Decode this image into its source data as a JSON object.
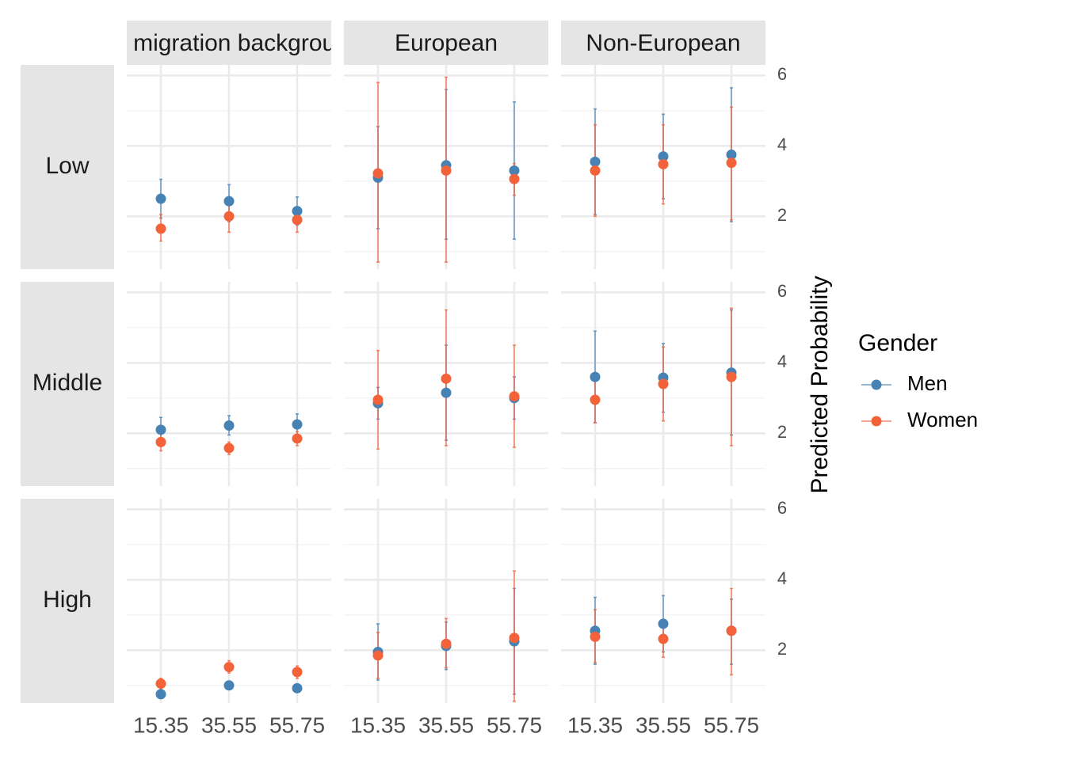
{
  "chart_data": {
    "type": "scatter",
    "x": [
      15,
      35,
      55
    ],
    "x_tick_labels": [
      "15.35",
      "35.55",
      "55.75"
    ],
    "ylabel": "Predicted Probability",
    "y_ticks": [
      2,
      4,
      6
    ],
    "ylim": [
      0.5,
      6.3
    ],
    "grid": true,
    "column_facets": [
      "No migration background",
      "European",
      "Non-European"
    ],
    "row_facets": [
      "Low",
      "Middle",
      "High"
    ],
    "legend": {
      "title": "Gender",
      "placement": "right",
      "entries": [
        {
          "name": "Men",
          "color": "#4682B4"
        },
        {
          "name": "Women",
          "color": "#F4623A"
        }
      ]
    },
    "panels": [
      {
        "row": "Low",
        "col": "No migration background",
        "series": [
          {
            "name": "Men",
            "y": [
              2.5,
              2.43,
              2.15
            ],
            "lo": [
              1.95,
              1.85,
              1.75
            ],
            "hi": [
              3.05,
              2.9,
              2.55
            ]
          },
          {
            "name": "Women",
            "y": [
              1.65,
              2.0,
              1.9
            ],
            "lo": [
              1.3,
              1.55,
              1.55
            ],
            "hi": [
              2.05,
              2.4,
              2.25
            ]
          }
        ]
      },
      {
        "row": "Low",
        "col": "European",
        "series": [
          {
            "name": "Men",
            "y": [
              3.1,
              3.45,
              3.3
            ],
            "lo": [
              1.65,
              1.35,
              1.35
            ],
            "hi": [
              4.55,
              5.6,
              5.25
            ]
          },
          {
            "name": "Women",
            "y": [
              3.22,
              3.3,
              3.06
            ],
            "lo": [
              0.7,
              0.7,
              2.6
            ],
            "hi": [
              5.8,
              5.95,
              3.5
            ]
          }
        ]
      },
      {
        "row": "Low",
        "col": "Non-European",
        "series": [
          {
            "name": "Men",
            "y": [
              3.55,
              3.7,
              3.75
            ],
            "lo": [
              2.05,
              2.5,
              1.85
            ],
            "hi": [
              5.05,
              4.9,
              5.65
            ]
          },
          {
            "name": "Women",
            "y": [
              3.3,
              3.48,
              3.52
            ],
            "lo": [
              2.0,
              2.35,
              1.9
            ],
            "hi": [
              4.6,
              4.6,
              5.1
            ]
          }
        ]
      },
      {
        "row": "Middle",
        "col": "No migration background",
        "series": [
          {
            "name": "Men",
            "y": [
              2.1,
              2.22,
              2.25
            ],
            "lo": [
              1.75,
              1.95,
              1.95
            ],
            "hi": [
              2.45,
              2.5,
              2.55
            ]
          },
          {
            "name": "Women",
            "y": [
              1.75,
              1.58,
              1.85
            ],
            "lo": [
              1.5,
              1.4,
              1.65
            ],
            "hi": [
              2.0,
              1.75,
              2.05
            ]
          }
        ]
      },
      {
        "row": "Middle",
        "col": "European",
        "series": [
          {
            "name": "Men",
            "y": [
              2.85,
              3.15,
              3.0
            ],
            "lo": [
              2.4,
              1.8,
              2.4
            ],
            "hi": [
              3.3,
              4.5,
              3.6
            ]
          },
          {
            "name": "Women",
            "y": [
              2.95,
              3.55,
              3.05
            ],
            "lo": [
              1.55,
              1.65,
              1.6
            ],
            "hi": [
              4.35,
              5.5,
              4.5
            ]
          }
        ]
      },
      {
        "row": "Middle",
        "col": "Non-European",
        "series": [
          {
            "name": "Men",
            "y": [
              3.6,
              3.58,
              3.72
            ],
            "lo": [
              2.3,
              2.6,
              1.95
            ],
            "hi": [
              4.9,
              4.55,
              5.5
            ]
          },
          {
            "name": "Women",
            "y": [
              2.95,
              3.4,
              3.6
            ],
            "lo": [
              2.3,
              2.35,
              1.65
            ],
            "hi": [
              3.6,
              4.45,
              5.55
            ]
          }
        ]
      },
      {
        "row": "High",
        "col": "No migration background",
        "series": [
          {
            "name": "Men",
            "y": [
              0.75,
              1.0,
              0.92
            ],
            "lo": [
              0.65,
              0.9,
              0.82
            ],
            "hi": [
              0.85,
              1.1,
              1.02
            ]
          },
          {
            "name": "Women",
            "y": [
              1.05,
              1.52,
              1.38
            ],
            "lo": [
              0.9,
              1.35,
              1.2
            ],
            "hi": [
              1.2,
              1.7,
              1.55
            ]
          }
        ]
      },
      {
        "row": "High",
        "col": "European",
        "series": [
          {
            "name": "Men",
            "y": [
              1.95,
              2.12,
              2.25
            ],
            "lo": [
              1.15,
              1.45,
              0.75
            ],
            "hi": [
              2.75,
              2.8,
              3.75
            ]
          },
          {
            "name": "Women",
            "y": [
              1.85,
              2.18,
              2.35
            ],
            "lo": [
              1.2,
              1.5,
              0.55
            ],
            "hi": [
              2.5,
              2.9,
              4.25
            ]
          }
        ]
      },
      {
        "row": "High",
        "col": "Non-European",
        "series": [
          {
            "name": "Men",
            "y": [
              2.55,
              2.75,
              2.55
            ],
            "lo": [
              1.6,
              1.95,
              1.6
            ],
            "hi": [
              3.5,
              3.55,
              3.45
            ]
          },
          {
            "name": "Women",
            "y": [
              2.38,
              2.32,
              2.55
            ],
            "lo": [
              1.65,
              1.8,
              1.3
            ],
            "hi": [
              3.15,
              2.85,
              3.75
            ]
          }
        ]
      }
    ]
  }
}
